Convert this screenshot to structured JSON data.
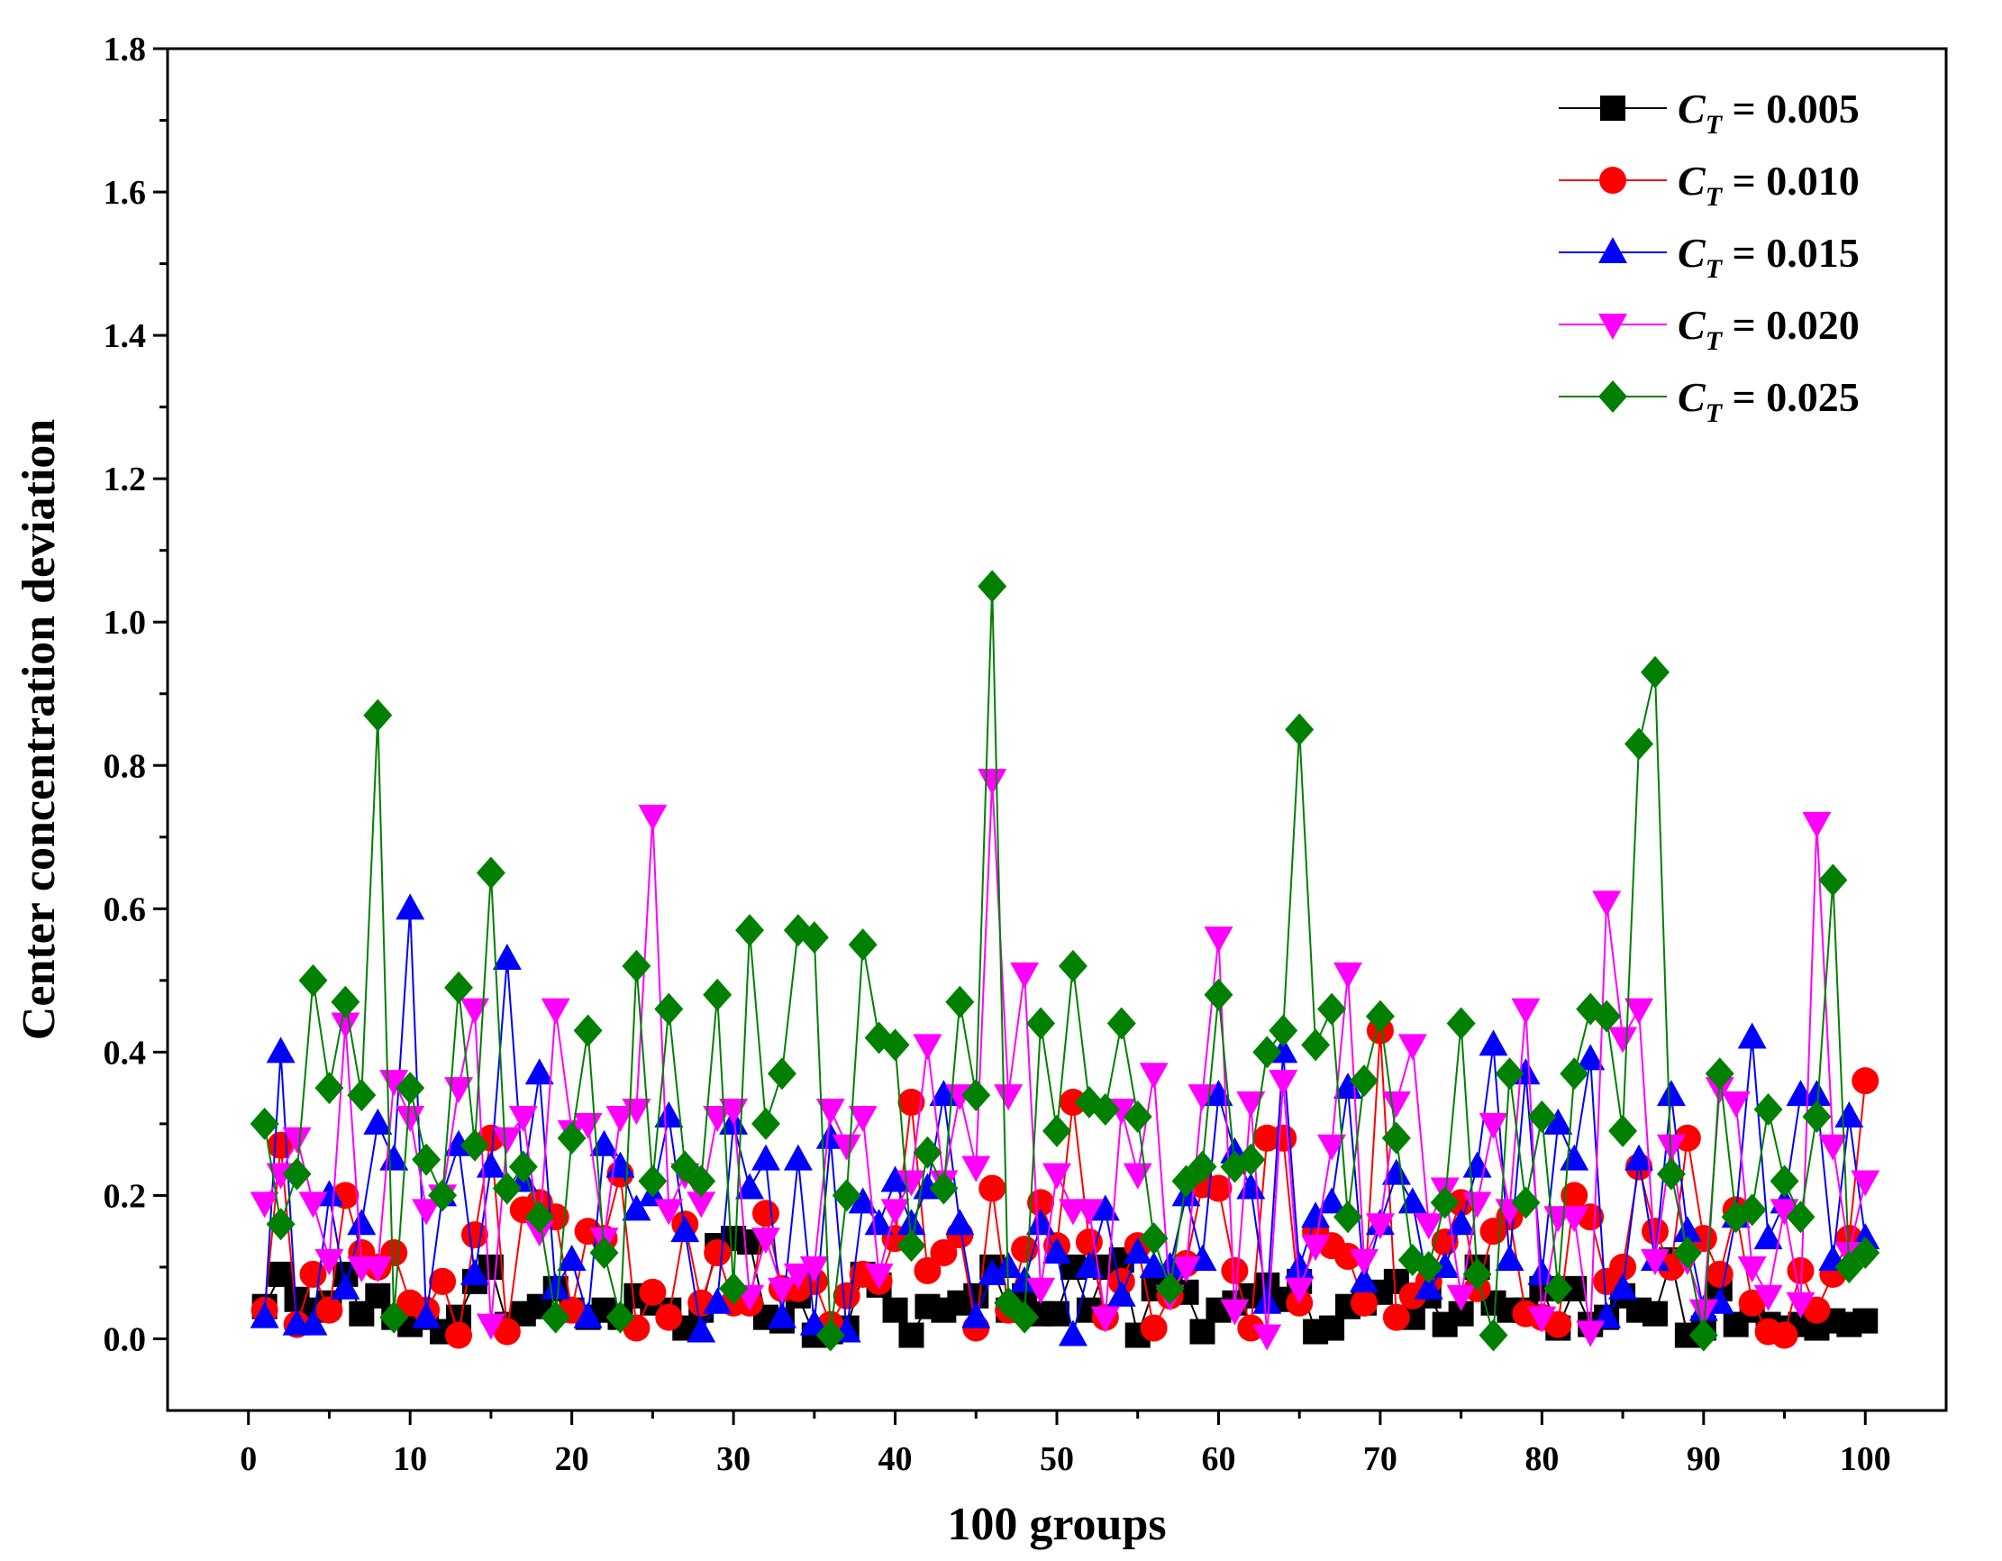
{
  "chart_data": {
    "type": "line",
    "title": "",
    "xlabel": "100 groups",
    "ylabel": "Center concentration deviation",
    "xlim": [
      -5,
      105
    ],
    "ylim": [
      -0.1,
      1.8
    ],
    "xticks": [
      0,
      10,
      20,
      30,
      40,
      50,
      60,
      70,
      80,
      90,
      100
    ],
    "yticks": [
      0.0,
      0.2,
      0.4,
      0.6,
      0.8,
      1.0,
      1.2,
      1.4,
      1.6,
      1.8
    ],
    "ytick_labels": [
      "0.0",
      "0.2",
      "0.4",
      "0.6",
      "0.8",
      "1.0",
      "1.2",
      "1.4",
      "1.6",
      "1.8"
    ],
    "xtick_labels": [
      "0",
      "10",
      "20",
      "30",
      "40",
      "50",
      "60",
      "70",
      "80",
      "90",
      "100"
    ],
    "legend_position": "top-right",
    "grid": false,
    "series": [
      {
        "name": "C_T = 0.005",
        "legend_main": "C",
        "legend_sub": "T",
        "legend_rest": " = 0.005",
        "color": "#000000",
        "marker": "square",
        "x": [
          1,
          2,
          3,
          4,
          5,
          6,
          7,
          8,
          9,
          10,
          11,
          12,
          13,
          14,
          15,
          16,
          17,
          18,
          19,
          20,
          21,
          22,
          23,
          24,
          25,
          26,
          27,
          28,
          29,
          30,
          31,
          32,
          33,
          34,
          35,
          36,
          37,
          38,
          39,
          40,
          41,
          42,
          43,
          44,
          45,
          46,
          47,
          48,
          49,
          50,
          51,
          52,
          53,
          54,
          55,
          56,
          57,
          58,
          59,
          60,
          61,
          62,
          63,
          64,
          65,
          66,
          67,
          68,
          69,
          70,
          71,
          72,
          73,
          74,
          75,
          76,
          77,
          78,
          79,
          80,
          81,
          82,
          83,
          84,
          85,
          86,
          87,
          88,
          89,
          90,
          91,
          92,
          93,
          94,
          95,
          96,
          97,
          98,
          99,
          100
        ],
        "values": [
          0.045,
          0.09,
          0.055,
          0.04,
          0.05,
          0.09,
          0.035,
          0.06,
          0.03,
          0.02,
          0.03,
          0.01,
          0.03,
          0.08,
          0.1,
          0.02,
          0.035,
          0.045,
          0.07,
          0.04,
          0.03,
          0.04,
          0.03,
          0.06,
          0.05,
          0.04,
          0.015,
          0.04,
          0.13,
          0.14,
          0.135,
          0.03,
          0.025,
          0.06,
          0.005,
          0.01,
          0.015,
          0.09,
          0.075,
          0.04,
          0.005,
          0.045,
          0.04,
          0.05,
          0.06,
          0.1,
          0.04,
          0.06,
          0.035,
          0.035,
          0.1,
          0.04,
          0.1,
          0.11,
          0.005,
          0.07,
          0.08,
          0.065,
          0.01,
          0.04,
          0.05,
          0.06,
          0.075,
          0.055,
          0.08,
          0.01,
          0.015,
          0.045,
          0.05,
          0.065,
          0.08,
          0.03,
          0.06,
          0.02,
          0.035,
          0.1,
          0.05,
          0.04,
          0.04,
          0.07,
          0.015,
          0.07,
          0.02,
          0.03,
          0.06,
          0.04,
          0.035,
          0.11,
          0.005,
          0.015,
          0.07,
          0.02,
          0.04,
          0.02,
          0.015,
          0.02,
          0.015,
          0.025,
          0.02,
          0.025
        ]
      },
      {
        "name": "C_T = 0.010",
        "legend_main": "C",
        "legend_sub": "T",
        "legend_rest": " = 0.010",
        "color": "#ff0000",
        "marker": "circle",
        "x": [
          1,
          2,
          3,
          4,
          5,
          6,
          7,
          8,
          9,
          10,
          11,
          12,
          13,
          14,
          15,
          16,
          17,
          18,
          19,
          20,
          21,
          22,
          23,
          24,
          25,
          26,
          27,
          28,
          29,
          30,
          31,
          32,
          33,
          34,
          35,
          36,
          37,
          38,
          39,
          40,
          41,
          42,
          43,
          44,
          45,
          46,
          47,
          48,
          49,
          50,
          51,
          52,
          53,
          54,
          55,
          56,
          57,
          58,
          59,
          60,
          61,
          62,
          63,
          64,
          65,
          66,
          67,
          68,
          69,
          70,
          71,
          72,
          73,
          74,
          75,
          76,
          77,
          78,
          79,
          80,
          81,
          82,
          83,
          84,
          85,
          86,
          87,
          88,
          89,
          90,
          91,
          92,
          93,
          94,
          95,
          96,
          97,
          98,
          99,
          100
        ],
        "values": [
          0.04,
          0.27,
          0.02,
          0.09,
          0.04,
          0.2,
          0.12,
          0.1,
          0.12,
          0.05,
          0.04,
          0.08,
          0.005,
          0.145,
          0.28,
          0.01,
          0.18,
          0.19,
          0.17,
          0.04,
          0.15,
          0.14,
          0.23,
          0.015,
          0.065,
          0.03,
          0.16,
          0.05,
          0.12,
          0.05,
          0.05,
          0.175,
          0.07,
          0.07,
          0.08,
          0.02,
          0.06,
          0.09,
          0.08,
          0.14,
          0.33,
          0.095,
          0.12,
          0.145,
          0.015,
          0.21,
          0.04,
          0.125,
          0.19,
          0.13,
          0.33,
          0.135,
          0.03,
          0.08,
          0.13,
          0.015,
          0.06,
          0.105,
          0.215,
          0.21,
          0.095,
          0.015,
          0.28,
          0.28,
          0.05,
          0.15,
          0.13,
          0.115,
          0.05,
          0.43,
          0.03,
          0.06,
          0.08,
          0.135,
          0.19,
          0.07,
          0.15,
          0.17,
          0.035,
          0.03,
          0.02,
          0.2,
          0.17,
          0.08,
          0.1,
          0.24,
          0.15,
          0.1,
          0.28,
          0.14,
          0.09,
          0.18,
          0.05,
          0.01,
          0.005,
          0.095,
          0.04,
          0.09,
          0.14,
          0.36
        ]
      },
      {
        "name": "C_T = 0.015",
        "legend_main": "C",
        "legend_sub": "T",
        "legend_rest": " = 0.015",
        "color": "#0000ff",
        "marker": "triangle-up",
        "x": [
          1,
          2,
          3,
          4,
          5,
          6,
          7,
          8,
          9,
          10,
          11,
          12,
          13,
          14,
          15,
          16,
          17,
          18,
          19,
          20,
          21,
          22,
          23,
          24,
          25,
          26,
          27,
          28,
          29,
          30,
          31,
          32,
          33,
          34,
          35,
          36,
          37,
          38,
          39,
          40,
          41,
          42,
          43,
          44,
          45,
          46,
          47,
          48,
          49,
          50,
          51,
          52,
          53,
          54,
          55,
          56,
          57,
          58,
          59,
          60,
          61,
          62,
          63,
          64,
          65,
          66,
          67,
          68,
          69,
          70,
          71,
          72,
          73,
          74,
          75,
          76,
          77,
          78,
          79,
          80,
          81,
          82,
          83,
          84,
          85,
          86,
          87,
          88,
          89,
          90,
          91,
          92,
          93,
          94,
          95,
          96,
          97,
          98,
          99,
          100
        ],
        "values": [
          0.03,
          0.4,
          0.02,
          0.02,
          0.2,
          0.07,
          0.16,
          0.3,
          0.25,
          0.6,
          0.03,
          0.2,
          0.27,
          0.09,
          0.24,
          0.53,
          0.22,
          0.37,
          0.07,
          0.11,
          0.03,
          0.27,
          0.24,
          0.18,
          0.2,
          0.31,
          0.15,
          0.01,
          0.05,
          0.3,
          0.21,
          0.25,
          0.03,
          0.25,
          0.02,
          0.28,
          0.01,
          0.19,
          0.16,
          0.22,
          0.16,
          0.21,
          0.34,
          0.16,
          0.03,
          0.09,
          0.1,
          0.08,
          0.16,
          0.12,
          0.005,
          0.1,
          0.18,
          0.06,
          0.12,
          0.1,
          0.1,
          0.2,
          0.11,
          0.34,
          0.26,
          0.21,
          0.05,
          0.4,
          0.1,
          0.17,
          0.19,
          0.35,
          0.08,
          0.16,
          0.23,
          0.19,
          0.07,
          0.1,
          0.16,
          0.24,
          0.41,
          0.11,
          0.37,
          0.09,
          0.3,
          0.25,
          0.39,
          0.03,
          0.07,
          0.25,
          0.11,
          0.34,
          0.15,
          0.04,
          0.05,
          0.17,
          0.42,
          0.14,
          0.19,
          0.34,
          0.34,
          0.11,
          0.31,
          0.14
        ]
      },
      {
        "name": "C_T = 0.020",
        "legend_main": "C",
        "legend_sub": "T",
        "legend_rest": " = 0.020",
        "color": "#ff00ff",
        "marker": "triangle-down",
        "x": [
          1,
          2,
          3,
          4,
          5,
          6,
          7,
          8,
          9,
          10,
          11,
          12,
          13,
          14,
          15,
          16,
          17,
          18,
          19,
          20,
          21,
          22,
          23,
          24,
          25,
          26,
          27,
          28,
          29,
          30,
          31,
          32,
          33,
          34,
          35,
          36,
          37,
          38,
          39,
          40,
          41,
          42,
          43,
          44,
          45,
          46,
          47,
          48,
          49,
          50,
          51,
          52,
          53,
          54,
          55,
          56,
          57,
          58,
          59,
          60,
          61,
          62,
          63,
          64,
          65,
          66,
          67,
          68,
          69,
          70,
          71,
          72,
          73,
          74,
          75,
          76,
          77,
          78,
          79,
          80,
          81,
          82,
          83,
          84,
          85,
          86,
          87,
          88,
          89,
          90,
          91,
          92,
          93,
          94,
          95,
          96,
          97,
          98,
          99,
          100
        ],
        "values": [
          0.19,
          0.23,
          0.28,
          0.19,
          0.11,
          0.44,
          0.1,
          0.1,
          0.36,
          0.31,
          0.18,
          0.2,
          0.35,
          0.46,
          0.02,
          0.28,
          0.31,
          0.15,
          0.46,
          0.29,
          0.3,
          0.14,
          0.31,
          0.32,
          0.73,
          0.18,
          0.23,
          0.19,
          0.31,
          0.32,
          0.06,
          0.14,
          0.07,
          0.09,
          0.1,
          0.32,
          0.27,
          0.31,
          0.09,
          0.18,
          0.22,
          0.41,
          0.22,
          0.34,
          0.24,
          0.78,
          0.34,
          0.51,
          0.07,
          0.23,
          0.18,
          0.18,
          0.03,
          0.32,
          0.23,
          0.37,
          0.06,
          0.1,
          0.34,
          0.56,
          0.04,
          0.33,
          0.005,
          0.36,
          0.07,
          0.13,
          0.27,
          0.51,
          0.11,
          0.16,
          0.33,
          0.41,
          0.16,
          0.21,
          0.06,
          0.19,
          0.3,
          0.18,
          0.46,
          0.03,
          0.17,
          0.17,
          0.01,
          0.61,
          0.42,
          0.46,
          0.11,
          0.27,
          0.11,
          0.04,
          0.35,
          0.33,
          0.1,
          0.06,
          0.18,
          0.05,
          0.72,
          0.27,
          0.12,
          0.22
        ]
      },
      {
        "name": "C_T = 0.025",
        "legend_main": "C",
        "legend_sub": "T",
        "legend_rest": " = 0.025",
        "color": "#008000",
        "marker": "diamond",
        "x": [
          1,
          2,
          3,
          4,
          5,
          6,
          7,
          8,
          9,
          10,
          11,
          12,
          13,
          14,
          15,
          16,
          17,
          18,
          19,
          20,
          21,
          22,
          23,
          24,
          25,
          26,
          27,
          28,
          29,
          30,
          31,
          32,
          33,
          34,
          35,
          36,
          37,
          38,
          39,
          40,
          41,
          42,
          43,
          44,
          45,
          46,
          47,
          48,
          49,
          50,
          51,
          52,
          53,
          54,
          55,
          56,
          57,
          58,
          59,
          60,
          61,
          62,
          63,
          64,
          65,
          66,
          67,
          68,
          69,
          70,
          71,
          72,
          73,
          74,
          75,
          76,
          77,
          78,
          79,
          80,
          81,
          82,
          83,
          84,
          85,
          86,
          87,
          88,
          89,
          90,
          91,
          92,
          93,
          94,
          95,
          96,
          97,
          98,
          99,
          100
        ],
        "values": [
          0.3,
          0.16,
          0.23,
          0.5,
          0.35,
          0.47,
          0.34,
          0.87,
          0.03,
          0.35,
          0.25,
          0.2,
          0.49,
          0.27,
          0.65,
          0.21,
          0.24,
          0.17,
          0.03,
          0.28,
          0.43,
          0.12,
          0.03,
          0.52,
          0.22,
          0.46,
          0.24,
          0.22,
          0.48,
          0.07,
          0.57,
          0.3,
          0.37,
          0.57,
          0.56,
          0.005,
          0.2,
          0.55,
          0.42,
          0.41,
          0.13,
          0.26,
          0.21,
          0.47,
          0.34,
          1.05,
          0.05,
          0.03,
          0.44,
          0.29,
          0.52,
          0.33,
          0.32,
          0.44,
          0.31,
          0.14,
          0.07,
          0.22,
          0.24,
          0.48,
          0.24,
          0.25,
          0.4,
          0.43,
          0.85,
          0.41,
          0.46,
          0.17,
          0.36,
          0.45,
          0.28,
          0.11,
          0.1,
          0.19,
          0.44,
          0.09,
          0.005,
          0.37,
          0.19,
          0.31,
          0.07,
          0.37,
          0.46,
          0.45,
          0.29,
          0.83,
          0.93,
          0.23,
          0.12,
          0.005,
          0.37,
          0.17,
          0.18,
          0.32,
          0.22,
          0.17,
          0.31,
          0.64,
          0.1,
          0.12
        ]
      }
    ]
  }
}
